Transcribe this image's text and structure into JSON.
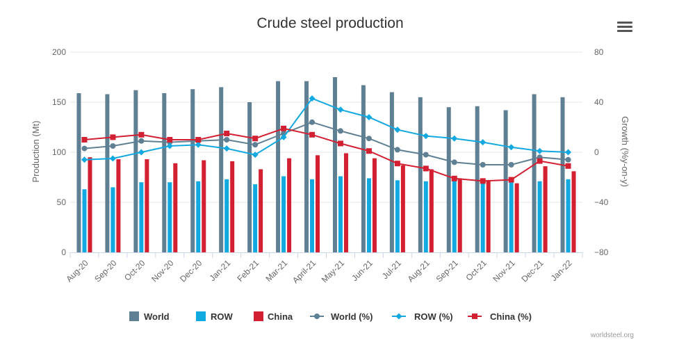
{
  "chart_data": {
    "type": "bar",
    "title": "Crude steel production",
    "ylabel_left": "Production (Mt)",
    "ylabel_right": "Growth (%y-on-y)",
    "ylim_left": [
      0,
      200
    ],
    "ylim_right": [
      -80,
      80
    ],
    "yticks_left": [
      "0",
      "50",
      "100",
      "150",
      "200"
    ],
    "yticks_right": [
      "−80",
      "−40",
      "0",
      "40",
      "80"
    ],
    "categories": [
      "Aug-20",
      "Sep-20",
      "Oct-20",
      "Nov-20",
      "Dec-20",
      "Jan-21",
      "Feb-21",
      "Mar-21",
      "April-21",
      "May-21",
      "Jun-21",
      "Jul-21",
      "Aug-21",
      "Sep-21",
      "Oct-21",
      "Nov-21",
      "Dec-21",
      "Jan-22"
    ],
    "grid": true,
    "legend_position": "bottom",
    "series": [
      {
        "name": "World",
        "kind": "bar",
        "axis": "left",
        "color": "#5f7f93",
        "values": [
          159,
          158,
          162,
          159,
          163,
          165,
          150,
          171,
          171,
          175,
          167,
          160,
          155,
          145,
          146,
          142,
          158,
          155
        ]
      },
      {
        "name": "ROW",
        "kind": "bar",
        "axis": "left",
        "color": "#12a8e0",
        "values": [
          63,
          65,
          70,
          70,
          71,
          73,
          68,
          76,
          73,
          76,
          74,
          72,
          71,
          72,
          72,
          72,
          71,
          73
        ]
      },
      {
        "name": "China",
        "kind": "bar",
        "axis": "left",
        "color": "#d21f31",
        "values": [
          95,
          93,
          93,
          89,
          92,
          91,
          83,
          94,
          97,
          99,
          94,
          87,
          83,
          74,
          72,
          69,
          86,
          81
        ]
      },
      {
        "name": "World (%)",
        "kind": "line",
        "axis": "right",
        "color": "#5f7f93",
        "values": [
          3,
          5,
          9,
          8,
          9,
          10,
          6,
          15,
          24,
          17,
          11,
          2,
          -2,
          -8,
          -10,
          -10,
          -4,
          -6
        ]
      },
      {
        "name": "ROW (%)",
        "kind": "line",
        "axis": "right",
        "color": "#12a8e0",
        "values": [
          -6,
          -5,
          0,
          5,
          6,
          3,
          -2,
          12,
          43,
          34,
          28,
          18,
          13,
          11,
          8,
          4,
          1,
          0
        ]
      },
      {
        "name": "China (%)",
        "kind": "line",
        "axis": "right",
        "color": "#d21f31",
        "values": [
          10,
          12,
          14,
          10,
          10,
          15,
          11,
          19,
          14,
          7,
          1,
          -9,
          -13,
          -21,
          -23,
          -22,
          -7,
          -11
        ]
      }
    ],
    "credit": "worldsteel.org"
  }
}
